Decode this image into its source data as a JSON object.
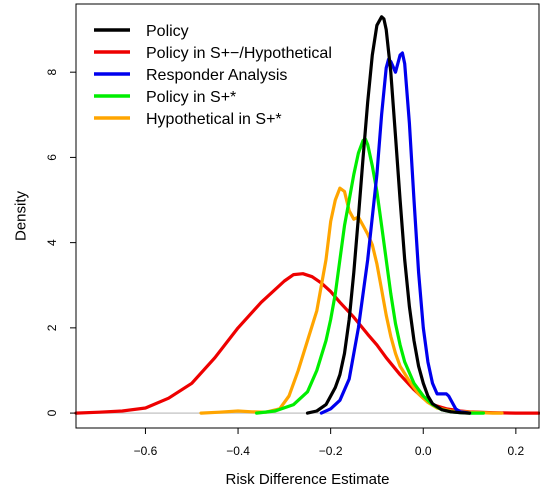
{
  "chart_data": {
    "type": "line",
    "title": "",
    "xlabel": "Risk Difference Estimate",
    "ylabel": "Density",
    "xlim": [
      -0.75,
      0.25
    ],
    "ylim": [
      -0.35,
      9.6
    ],
    "x_ticks": [
      -0.6,
      -0.4,
      -0.2,
      0.0,
      0.2
    ],
    "x_tick_labels": [
      "−0.6",
      "−0.4",
      "−0.2",
      "0.0",
      "0.2"
    ],
    "y_ticks": [
      0,
      2,
      4,
      6,
      8
    ],
    "y_tick_labels": [
      "0",
      "2",
      "4",
      "6",
      "8"
    ],
    "grid": false,
    "baseline": {
      "y": 0,
      "color": "#cccccc"
    },
    "legend_position": "top-left",
    "series": [
      {
        "name": "Policy in S+−/Hypothetical",
        "color": "#ee0000",
        "x": [
          -0.75,
          -0.7,
          -0.65,
          -0.6,
          -0.55,
          -0.5,
          -0.45,
          -0.4,
          -0.35,
          -0.3,
          -0.28,
          -0.26,
          -0.24,
          -0.22,
          -0.2,
          -0.18,
          -0.15,
          -0.12,
          -0.1,
          -0.08,
          -0.05,
          -0.02,
          0.0,
          0.02,
          0.05,
          0.08,
          0.1,
          0.15,
          0.2,
          0.25
        ],
        "y": [
          0.0,
          0.02,
          0.05,
          0.12,
          0.35,
          0.7,
          1.3,
          2.0,
          2.6,
          3.1,
          3.25,
          3.27,
          3.2,
          3.05,
          2.85,
          2.6,
          2.25,
          1.85,
          1.6,
          1.3,
          0.9,
          0.55,
          0.35,
          0.2,
          0.1,
          0.05,
          0.03,
          0.01,
          0.0,
          0.0
        ]
      },
      {
        "name": "Hypothetical in S+*",
        "color": "#ffa500",
        "x": [
          -0.48,
          -0.44,
          -0.4,
          -0.37,
          -0.34,
          -0.31,
          -0.29,
          -0.27,
          -0.25,
          -0.23,
          -0.21,
          -0.2,
          -0.19,
          -0.18,
          -0.17,
          -0.16,
          -0.15,
          -0.14,
          -0.13,
          -0.12,
          -0.11,
          -0.1,
          -0.09,
          -0.08,
          -0.07,
          -0.06,
          -0.05,
          -0.03,
          -0.01,
          0.01,
          0.03,
          0.06,
          0.1,
          0.15,
          0.17
        ],
        "y": [
          0.0,
          0.02,
          0.05,
          0.03,
          0.02,
          0.1,
          0.4,
          1.0,
          1.7,
          2.4,
          3.6,
          4.5,
          5.0,
          5.28,
          5.2,
          4.75,
          4.55,
          4.6,
          4.4,
          4.2,
          3.95,
          3.5,
          2.9,
          2.3,
          1.8,
          1.4,
          1.1,
          0.75,
          0.45,
          0.25,
          0.12,
          0.05,
          0.02,
          0.0,
          0.0
        ]
      },
      {
        "name": "Policy in S+*",
        "color": "#00ee00",
        "x": [
          -0.36,
          -0.32,
          -0.28,
          -0.25,
          -0.23,
          -0.21,
          -0.2,
          -0.19,
          -0.18,
          -0.17,
          -0.16,
          -0.15,
          -0.14,
          -0.13,
          -0.125,
          -0.12,
          -0.11,
          -0.1,
          -0.09,
          -0.08,
          -0.07,
          -0.06,
          -0.05,
          -0.04,
          -0.02,
          0.0,
          0.02,
          0.04,
          0.06,
          0.08,
          0.1,
          0.13
        ],
        "y": [
          0.0,
          0.05,
          0.2,
          0.5,
          1.0,
          1.7,
          2.2,
          2.8,
          3.6,
          4.4,
          5.0,
          5.6,
          6.1,
          6.4,
          6.43,
          6.3,
          5.8,
          5.2,
          4.4,
          3.6,
          2.8,
          2.1,
          1.6,
          1.2,
          0.7,
          0.4,
          0.2,
          0.08,
          0.03,
          0.01,
          0.0,
          0.0
        ]
      },
      {
        "name": "Responder Analysis",
        "color": "#0000ee",
        "x": [
          -0.22,
          -0.2,
          -0.18,
          -0.16,
          -0.14,
          -0.12,
          -0.1,
          -0.09,
          -0.08,
          -0.075,
          -0.07,
          -0.06,
          -0.05,
          -0.045,
          -0.04,
          -0.03,
          -0.02,
          -0.01,
          0.0,
          0.01,
          0.02,
          0.03,
          0.04,
          0.05,
          0.055,
          0.06,
          0.07,
          0.08,
          0.1
        ],
        "y": [
          0.0,
          0.1,
          0.3,
          0.8,
          2.0,
          3.6,
          5.6,
          7.0,
          8.1,
          8.3,
          8.25,
          8.0,
          8.4,
          8.45,
          8.2,
          6.8,
          5.0,
          3.3,
          2.0,
          1.2,
          0.7,
          0.45,
          0.45,
          0.45,
          0.4,
          0.3,
          0.1,
          0.03,
          0.0
        ]
      },
      {
        "name": "Policy",
        "color": "#000000",
        "x": [
          -0.25,
          -0.23,
          -0.21,
          -0.2,
          -0.19,
          -0.18,
          -0.17,
          -0.16,
          -0.15,
          -0.14,
          -0.13,
          -0.12,
          -0.11,
          -0.1,
          -0.09,
          -0.085,
          -0.08,
          -0.07,
          -0.06,
          -0.05,
          -0.04,
          -0.03,
          -0.02,
          -0.01,
          0.0,
          0.01,
          0.02,
          0.04,
          0.06,
          0.08,
          0.1
        ],
        "y": [
          0.0,
          0.05,
          0.2,
          0.4,
          0.6,
          0.9,
          1.4,
          2.2,
          3.3,
          4.6,
          6.0,
          7.3,
          8.4,
          9.1,
          9.3,
          9.25,
          9.0,
          8.0,
          6.5,
          5.0,
          3.6,
          2.5,
          1.7,
          1.1,
          0.7,
          0.4,
          0.22,
          0.08,
          0.03,
          0.01,
          0.0
        ]
      }
    ],
    "legend": [
      {
        "label": "Policy",
        "color": "#000000"
      },
      {
        "label": "Policy in S+−/Hypothetical",
        "color": "#ee0000"
      },
      {
        "label": "Responder Analysis",
        "color": "#0000ee"
      },
      {
        "label": "Policy in S+*",
        "color": "#00ee00"
      },
      {
        "label": "Hypothetical in S+*",
        "color": "#ffa500"
      }
    ]
  }
}
